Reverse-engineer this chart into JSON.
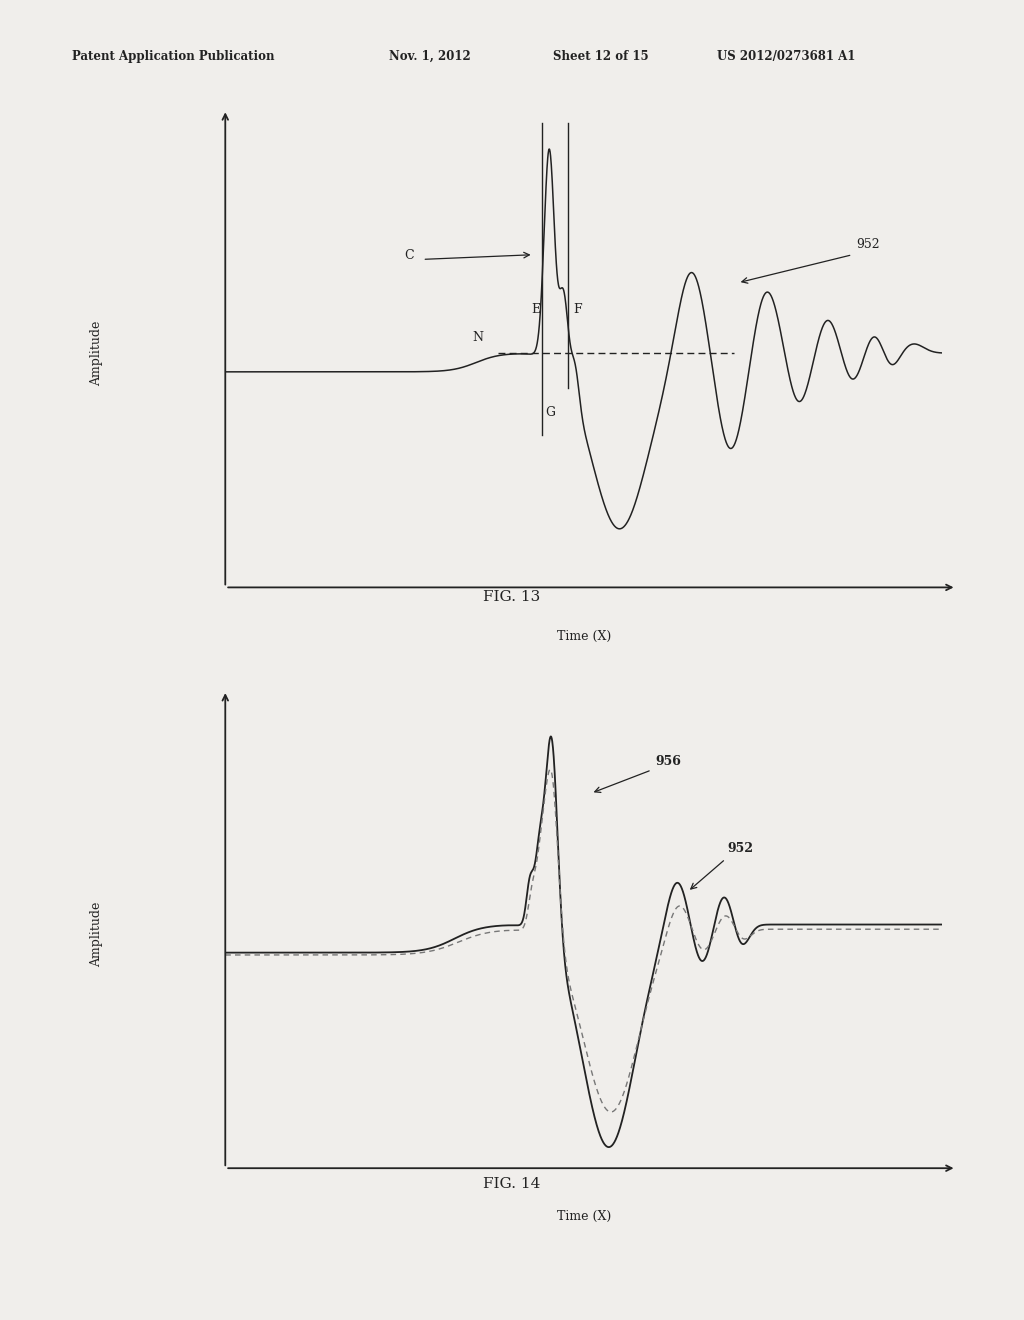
{
  "bg_color": "#f0eeeb",
  "header_text": "Patent Application Publication",
  "header_date": "Nov. 1, 2012",
  "header_sheet": "Sheet 12 of 15",
  "header_patent": "US 2012/0273681 A1",
  "fig13_title": "FIG. 13",
  "fig14_title": "FIG. 14",
  "xlabel": "Time (X)",
  "ylabel": "Amplitude",
  "line_color": "#222222",
  "dashed_color": "#777777"
}
